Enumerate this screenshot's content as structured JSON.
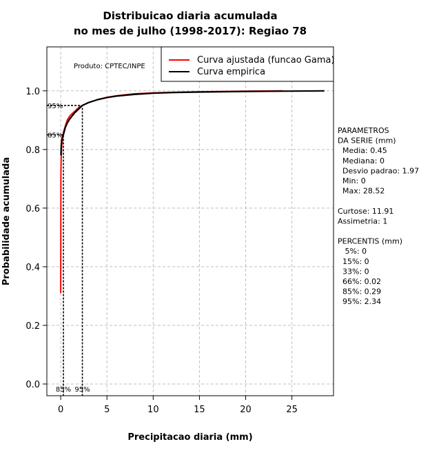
{
  "chart_data": {
    "type": "line",
    "title": [
      "Distribuicao diaria acumulada",
      "no mes de julho (1998-2017): Regiao 78"
    ],
    "xlabel": "Precipitacao diaria (mm)",
    "ylabel": "Probabilidade acumulada",
    "xlim": [
      -1.5,
      29.5
    ],
    "ylim": [
      -0.04,
      1.15
    ],
    "xticks": [
      0,
      5,
      10,
      15,
      20,
      25
    ],
    "yticks": [
      0.0,
      0.2,
      0.4,
      0.6,
      0.8,
      1.0
    ],
    "xtick_labels": [
      "0",
      "5",
      "10",
      "15",
      "20",
      "25"
    ],
    "ytick_labels": [
      "0.0",
      "0.2",
      "0.4",
      "0.6",
      "0.8",
      "1.0"
    ],
    "grid": true,
    "legend_position": "top-right",
    "credit": "Produto: CPTEC/INPE",
    "series": [
      {
        "name": "Curva ajustada (funcao Gama)",
        "color": "#ff0000",
        "x": [
          0,
          0.02,
          0.05,
          0.1,
          0.2,
          0.3,
          0.5,
          0.7,
          1.0,
          1.5,
          2.0,
          2.34,
          3.0,
          4.0,
          5.0,
          6.0,
          8.0,
          10.0,
          12.0,
          15.0,
          20.0,
          24.0
        ],
        "y": [
          0.31,
          0.72,
          0.77,
          0.81,
          0.84,
          0.86,
          0.88,
          0.9,
          0.915,
          0.93,
          0.945,
          0.95,
          0.96,
          0.97,
          0.978,
          0.983,
          0.99,
          0.993,
          0.995,
          0.997,
          0.999,
          1.0
        ]
      },
      {
        "name": "Curva empirica",
        "color": "#000000",
        "x": [
          0.02,
          0.05,
          0.1,
          0.2,
          0.29,
          0.5,
          0.7,
          1.0,
          1.5,
          2.0,
          2.34,
          3.0,
          4.0,
          5.0,
          6.0,
          8.0,
          10.0,
          12.0,
          15.0,
          20.0,
          28.52
        ],
        "y": [
          0.78,
          0.81,
          0.83,
          0.845,
          0.85,
          0.875,
          0.89,
          0.905,
          0.925,
          0.94,
          0.95,
          0.96,
          0.97,
          0.977,
          0.982,
          0.988,
          0.992,
          0.994,
          0.996,
          0.998,
          1.0
        ]
      }
    ],
    "reference_lines": [
      {
        "label": "85%",
        "x": 0.29,
        "y": 0.85
      },
      {
        "label": "95%",
        "x": 2.34,
        "y": 0.95
      }
    ],
    "stats_panel": [
      "PARAMETROS",
      "DA SERIE (mm)",
      "  Media: 0.45",
      "  Mediana: 0",
      "  Desvio padrao: 1.97",
      "  Min: 0",
      "  Max: 28.52",
      "",
      "Curtose: 11.91",
      "Assimetria: 1",
      "",
      "PERCENTIS (mm)",
      "   5%: 0",
      "  15%: 0",
      "  33%: 0",
      "  66%: 0.02",
      "  85%: 0.29",
      "  95%: 2.34"
    ]
  }
}
